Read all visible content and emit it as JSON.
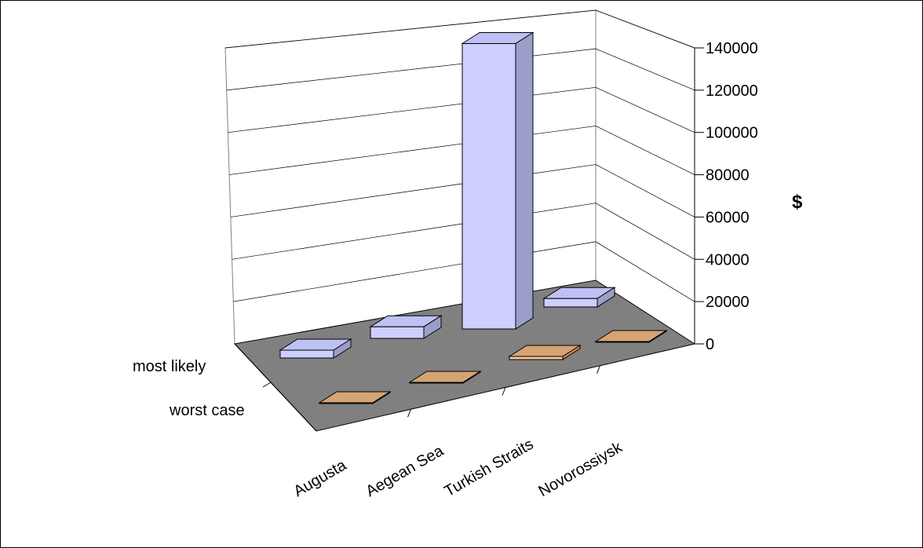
{
  "chart_data": {
    "type": "bar",
    "subtype": "3d-clustered-depth",
    "title": "",
    "xlabel": "",
    "ylabel": "$",
    "ylim": [
      0,
      140000
    ],
    "yticks": [
      0,
      20000,
      40000,
      60000,
      80000,
      100000,
      120000,
      140000
    ],
    "grid": true,
    "categories": [
      "Augusta",
      "Aegean Sea",
      "Turkish Straits",
      "Novorossiysk"
    ],
    "series": [
      {
        "name": "most likely",
        "values": [
          3500,
          5500,
          135000,
          4000
        ]
      },
      {
        "name": "worst case",
        "values": [
          0,
          0,
          1500,
          0
        ]
      }
    ],
    "colors": {
      "most_likely_front": "#cccfff",
      "most_likely_side": "#9b9ec9",
      "most_likely_top": "#bec1f4",
      "worst_case_top": "#d6a374",
      "worst_case_front": "#f7c896",
      "floor": "#808080",
      "wall": "#ffffff",
      "grid": "#000000"
    }
  }
}
